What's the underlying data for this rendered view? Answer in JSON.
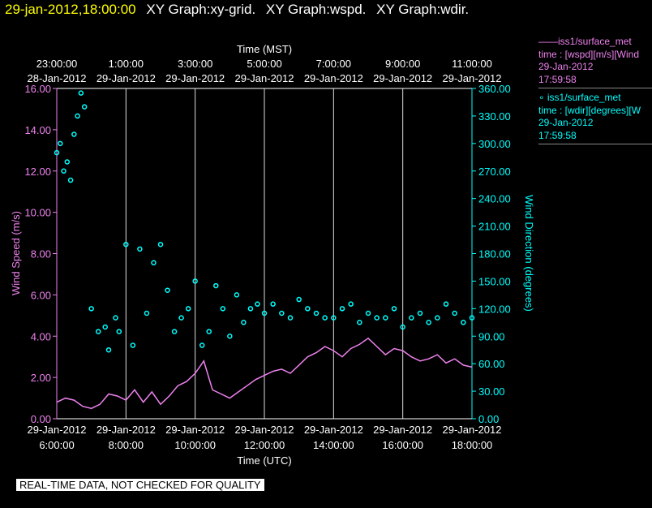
{
  "header": {
    "timestamp": "29-jan-2012,18:00:00",
    "graphs": [
      "XY Graph:xy-grid.",
      "XY Graph:wspd.",
      "XY Graph:wdir."
    ]
  },
  "legend": [
    {
      "marker": "——",
      "name": "iss1/surface_met",
      "desc": "time : [wspd][m/s][Wind",
      "date": "29-Jan-2012",
      "time": "17:59:58",
      "color": "#ee82ee"
    },
    {
      "marker": "∘",
      "name": "iss1/surface_met",
      "desc": "time : [wdir][degrees][W",
      "date": "29-Jan-2012",
      "time": "17:59:58",
      "color": "#00ffff"
    }
  ],
  "notice": "REAL-TIME DATA, NOT CHECKED FOR QUALITY",
  "chart_data": {
    "type": "line",
    "top_axis": {
      "label": "Time (MST)",
      "ticks": [
        {
          "time": "23:00:00",
          "date": "28-Jan-2012"
        },
        {
          "time": "1:00:00",
          "date": "29-Jan-2012"
        },
        {
          "time": "3:00:00",
          "date": "29-Jan-2012"
        },
        {
          "time": "5:00:00",
          "date": "29-Jan-2012"
        },
        {
          "time": "7:00:00",
          "date": "29-Jan-2012"
        },
        {
          "time": "9:00:00",
          "date": "29-Jan-2012"
        },
        {
          "time": "11:00:00",
          "date": "29-Jan-2012"
        }
      ]
    },
    "bottom_axis": {
      "label": "Time (UTC)",
      "ticks": [
        {
          "time": "6:00:00",
          "date": "29-Jan-2012",
          "hour": 6
        },
        {
          "time": "8:00:00",
          "date": "29-Jan-2012",
          "hour": 8
        },
        {
          "time": "10:00:00",
          "date": "29-Jan-2012",
          "hour": 10
        },
        {
          "time": "12:00:00",
          "date": "29-Jan-2012",
          "hour": 12
        },
        {
          "time": "14:00:00",
          "date": "29-Jan-2012",
          "hour": 14
        },
        {
          "time": "16:00:00",
          "date": "29-Jan-2012",
          "hour": 16
        },
        {
          "time": "18:00:00",
          "date": "29-Jan-2012",
          "hour": 18
        }
      ],
      "range_hours": [
        6,
        18
      ]
    },
    "left_axis": {
      "label": "Wind Speed (m/s)",
      "ticks": [
        "0.00",
        "2.00",
        "4.00",
        "6.00",
        "8.00",
        "10.00",
        "12.00",
        "14.00",
        "16.00"
      ],
      "range": [
        0,
        16
      ],
      "color": "#ee82ee"
    },
    "right_axis": {
      "label": "Wind Direction (degrees)",
      "ticks": [
        "0.00",
        "30.00",
        "60.00",
        "90.00",
        "120.00",
        "150.00",
        "180.00",
        "210.00",
        "240.00",
        "270.00",
        "300.00",
        "330.00",
        "360.00"
      ],
      "range": [
        0,
        360
      ],
      "color": "#00ffff"
    },
    "grid": true,
    "series": [
      {
        "name": "wspd",
        "color": "#ee82ee",
        "x_hours": [
          6.0,
          6.25,
          6.5,
          6.75,
          7.0,
          7.25,
          7.5,
          7.75,
          8.0,
          8.25,
          8.5,
          8.75,
          9.0,
          9.25,
          9.5,
          9.75,
          10.0,
          10.25,
          10.5,
          10.75,
          11.0,
          11.25,
          11.5,
          11.75,
          12.0,
          12.25,
          12.5,
          12.75,
          13.0,
          13.25,
          13.5,
          13.75,
          14.0,
          14.25,
          14.5,
          14.75,
          15.0,
          15.25,
          15.5,
          15.75,
          16.0,
          16.25,
          16.5,
          16.75,
          17.0,
          17.25,
          17.5,
          17.75,
          18.0
        ],
        "values": [
          0.8,
          1.0,
          0.9,
          0.6,
          0.5,
          0.7,
          1.2,
          1.1,
          0.9,
          1.4,
          0.8,
          1.3,
          0.7,
          1.1,
          1.6,
          1.8,
          2.2,
          2.8,
          1.4,
          1.2,
          1.0,
          1.3,
          1.6,
          1.9,
          2.1,
          2.3,
          2.4,
          2.2,
          2.6,
          3.0,
          3.2,
          3.5,
          3.3,
          3.0,
          3.4,
          3.6,
          3.9,
          3.5,
          3.1,
          3.4,
          3.3,
          3.0,
          2.8,
          2.9,
          3.1,
          2.7,
          2.9,
          2.6,
          2.5
        ]
      },
      {
        "name": "wdir",
        "color": "#00ffff",
        "x_hours": [
          6.0,
          6.1,
          6.2,
          6.3,
          6.4,
          6.5,
          6.6,
          6.7,
          6.8,
          7.0,
          7.2,
          7.4,
          7.5,
          7.7,
          7.8,
          8.0,
          8.2,
          8.4,
          8.6,
          8.8,
          9.0,
          9.2,
          9.4,
          9.6,
          9.8,
          10.0,
          10.2,
          10.4,
          10.6,
          10.8,
          11.0,
          11.2,
          11.4,
          11.6,
          11.8,
          12.0,
          12.25,
          12.5,
          12.75,
          13.0,
          13.25,
          13.5,
          13.75,
          14.0,
          14.25,
          14.5,
          14.75,
          15.0,
          15.25,
          15.5,
          15.75,
          16.0,
          16.25,
          16.5,
          16.75,
          17.0,
          17.25,
          17.5,
          17.75,
          18.0
        ],
        "values": [
          290,
          300,
          270,
          280,
          260,
          310,
          330,
          355,
          340,
          120,
          95,
          100,
          75,
          110,
          95,
          190,
          80,
          185,
          115,
          170,
          190,
          140,
          95,
          110,
          120,
          150,
          80,
          95,
          145,
          120,
          90,
          135,
          105,
          120,
          125,
          115,
          125,
          115,
          110,
          130,
          120,
          115,
          110,
          110,
          120,
          125,
          105,
          115,
          110,
          110,
          120,
          100,
          110,
          115,
          105,
          110,
          125,
          115,
          105,
          110
        ]
      }
    ]
  }
}
